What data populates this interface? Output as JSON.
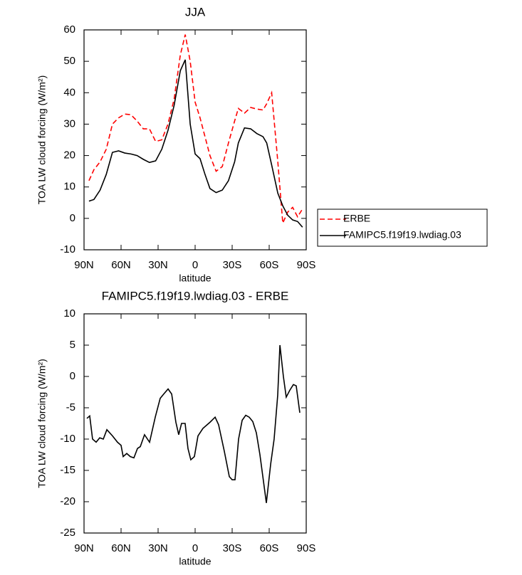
{
  "chart_data": [
    {
      "type": "line",
      "title": "JJA",
      "xlabel": "latitude",
      "ylabel": "TOA LW cloud forcing (W/m²)",
      "x": [
        86,
        82,
        77,
        72,
        67,
        62,
        57,
        52,
        47,
        42,
        37,
        32,
        27,
        22,
        17,
        12,
        8,
        4,
        0,
        -4,
        -8,
        -12,
        -17,
        -22,
        -27,
        -32,
        -35,
        -40,
        -45,
        -50,
        -55,
        -58,
        -62,
        -67,
        -71,
        -75,
        -79,
        -83,
        -87
      ],
      "series": [
        {
          "name": "ERBE",
          "color": "#ff0000",
          "linestyle": "dashed",
          "values": [
            12,
            15.5,
            18,
            22,
            30,
            32,
            33.2,
            33,
            31,
            28.5,
            28.5,
            24.5,
            25,
            30,
            38,
            52,
            58.5,
            50,
            37,
            32,
            26,
            20,
            15,
            16.5,
            24,
            31,
            35,
            33.5,
            35.3,
            34.8,
            34.5,
            36.5,
            40,
            18,
            -1.5,
            2,
            3.5,
            0.5,
            3
          ]
        },
        {
          "name": "FAMIPC5.f19f19.lwdiag.03",
          "color": "#000000",
          "linestyle": "solid",
          "values": [
            5.5,
            6,
            9,
            14,
            21,
            21.5,
            20.8,
            20.5,
            20,
            18.8,
            17.8,
            18.3,
            22,
            28,
            36,
            47,
            50.5,
            30,
            20.5,
            19,
            14,
            9.5,
            8.2,
            9,
            12,
            18,
            24,
            28.8,
            28.5,
            27,
            26,
            24,
            17,
            8,
            4,
            1,
            -0.5,
            -1,
            -2.8
          ]
        }
      ],
      "xlim": [
        90,
        -90
      ],
      "xticks": [
        {
          "value": 90,
          "label": "90N"
        },
        {
          "value": 60,
          "label": "60N"
        },
        {
          "value": 30,
          "label": "30N"
        },
        0,
        {
          "value": -30,
          "label": "30S"
        },
        {
          "value": -60,
          "label": "60S"
        },
        {
          "value": -90,
          "label": "90S"
        }
      ],
      "ylim": [
        -10,
        60
      ],
      "yticks": [
        -10,
        0,
        10,
        20,
        30,
        40,
        50,
        60
      ],
      "legend": "outside-right"
    },
    {
      "type": "line",
      "title": "FAMIPC5.f19f19.lwdiag.03 - ERBE",
      "xlabel": "latitude",
      "ylabel": "TOA LW cloud forcing (W/m²)",
      "x": [
        87.7,
        85.4,
        83.1,
        80.2,
        77.3,
        74.4,
        71.5,
        66.9,
        62.9,
        60,
        58.3,
        55.4,
        52.5,
        49.6,
        46.7,
        44.4,
        41,
        36.9,
        32.3,
        28.3,
        25.4,
        21.9,
        19,
        15.6,
        13.3,
        11,
        8.1,
        5.8,
        3.5,
        0.6,
        -2.3,
        -6.3,
        -12.1,
        -16.2,
        -19,
        -23.7,
        -27.7,
        -30,
        -32.3,
        -35.2,
        -38.1,
        -41,
        -43.8,
        -46.7,
        -49.6,
        -52.5,
        -57.7,
        -61.2,
        -64,
        -66.9,
        -68.7,
        -71.5,
        -73.8,
        -76.7,
        -79.6,
        -81.9,
        -84.8
      ],
      "values": [
        -6.7,
        -6.3,
        -10,
        -10.5,
        -9.8,
        -10,
        -8.5,
        -9.5,
        -10.5,
        -11,
        -12.8,
        -12.3,
        -12.8,
        -13,
        -11.5,
        -11.2,
        -9.3,
        -10.5,
        -6.5,
        -3.5,
        -2.8,
        -2,
        -2.8,
        -7.3,
        -9.3,
        -7.5,
        -7.5,
        -11.5,
        -13.3,
        -12.8,
        -9.5,
        -8.3,
        -7.3,
        -6.5,
        -7.7,
        -12,
        -16,
        -16.5,
        -16.5,
        -10,
        -7,
        -6.2,
        -6.5,
        -7.2,
        -9,
        -12.5,
        -20.2,
        -14,
        -10,
        -3,
        5,
        0,
        -3.3,
        -2.2,
        -1.3,
        -1.5,
        -5.8
      ],
      "color": "#000000",
      "xlim": [
        90,
        -90
      ],
      "xticks": [
        {
          "value": 90,
          "label": "90N"
        },
        {
          "value": 60,
          "label": "60N"
        },
        {
          "value": 30,
          "label": "30N"
        },
        0,
        {
          "value": -30,
          "label": "30S"
        },
        {
          "value": -60,
          "label": "60S"
        },
        {
          "value": -90,
          "label": "90S"
        }
      ],
      "ylim": [
        -25,
        10
      ],
      "yticks": [
        -25,
        -20,
        -15,
        -10,
        -5,
        0,
        5,
        10
      ]
    }
  ]
}
